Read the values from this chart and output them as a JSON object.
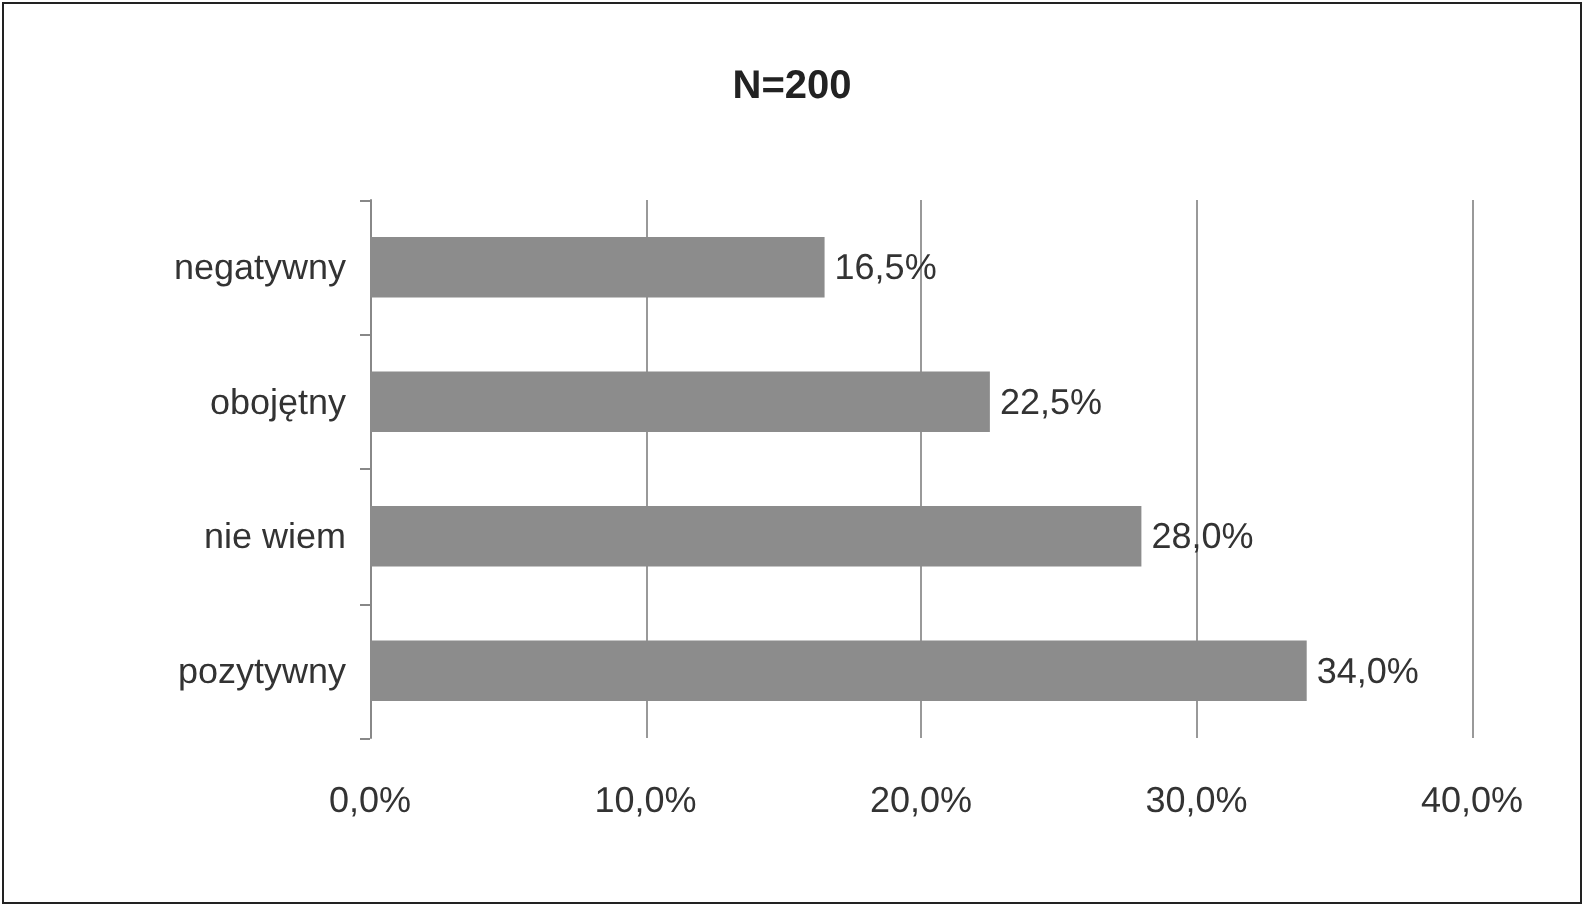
{
  "chart_data": {
    "type": "bar",
    "orientation": "horizontal",
    "title": "N=200",
    "categories": [
      "negatywny",
      "obojętny",
      "nie wiem",
      "pozytywny"
    ],
    "values": [
      16.5,
      22.5,
      28.0,
      34.0
    ],
    "value_labels": [
      "16,5%",
      "22,5%",
      "28,0%",
      "34,0%"
    ],
    "color": "#8c8c8c",
    "xlim": [
      0,
      40
    ],
    "xticks": [
      {
        "value": 0,
        "label": "0,0%"
      },
      {
        "value": 10,
        "label": "10,0%"
      },
      {
        "value": 20,
        "label": "20,0%"
      },
      {
        "value": 30,
        "label": "30,0%"
      },
      {
        "value": 40,
        "label": "40,0%"
      }
    ],
    "grid": "x"
  }
}
